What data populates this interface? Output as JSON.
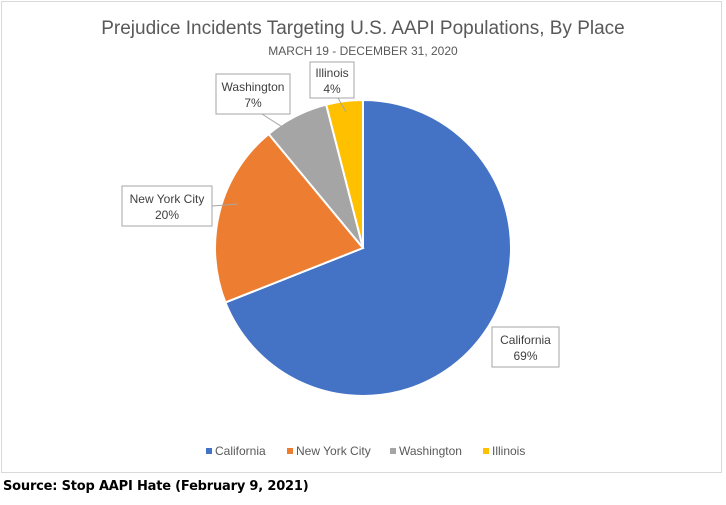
{
  "chart_data": {
    "type": "pie",
    "title": "Prejudice Incidents Targeting U.S. AAPI Populations, By Place",
    "subtitle": "MARCH 19 - DECEMBER 31, 2020",
    "slices": [
      {
        "label": "California",
        "value": 69,
        "display": "69%",
        "color": "#4472c4"
      },
      {
        "label": "New York City",
        "value": 20,
        "display": "20%",
        "color": "#ed7d31"
      },
      {
        "label": "Washington",
        "value": 7,
        "display": "7%",
        "color": "#a5a5a5"
      },
      {
        "label": "Illinois",
        "value": 4,
        "display": "4%",
        "color": "#ffc000"
      }
    ],
    "legend_position": "bottom"
  },
  "source": "Source: Stop AAPI Hate (February 9, 2021)"
}
